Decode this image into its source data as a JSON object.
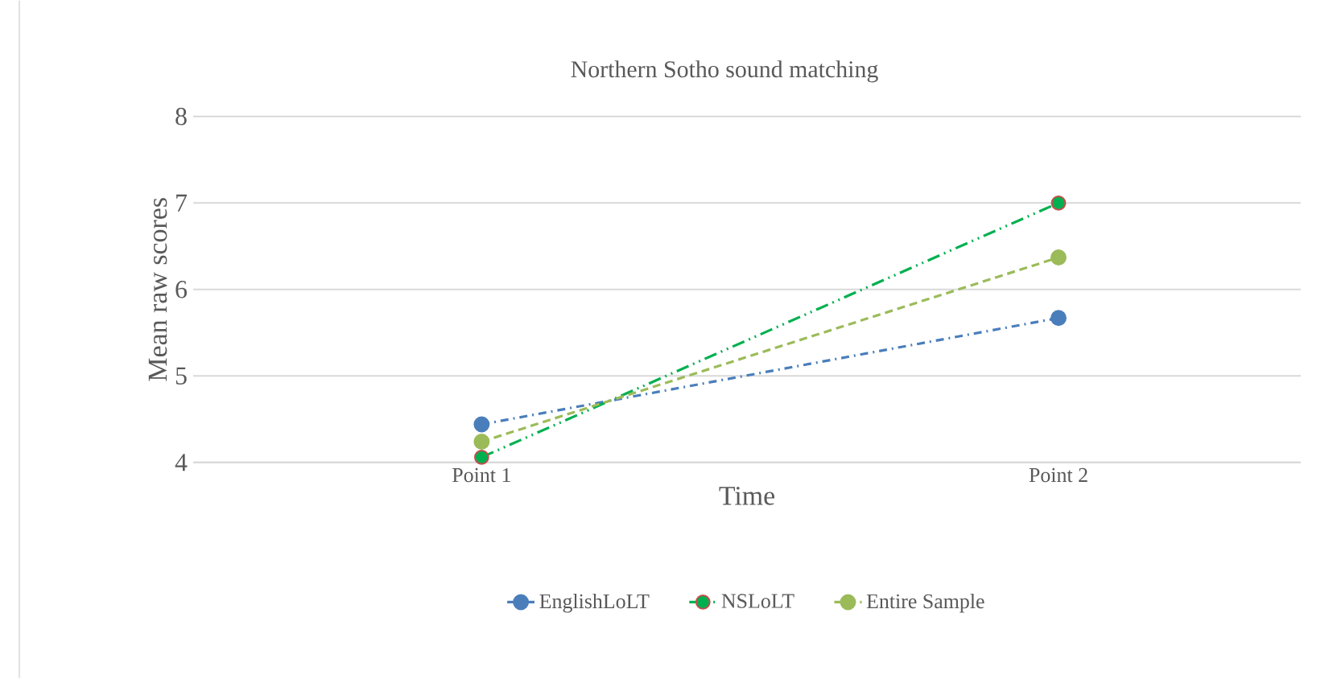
{
  "chart_data": {
    "type": "line",
    "title": "Northern Sotho sound matching",
    "xlabel": "Time",
    "ylabel": "Mean raw scores",
    "categories": [
      "Point 1",
      "Point 2"
    ],
    "series": [
      {
        "name": "EnglishLoLT",
        "color": "#4a7ebb",
        "values": [
          4.44,
          5.67
        ],
        "line_style": "dashdot"
      },
      {
        "name": "NSLoLT",
        "color": "#00b050",
        "values": [
          4.06,
          7.0
        ],
        "line_style": "dashdotdot"
      },
      {
        "name": "Entire Sample",
        "color": "#9bbb59",
        "values": [
          4.24,
          6.37
        ],
        "line_style": "dashed"
      }
    ],
    "ylim": [
      4,
      8
    ],
    "yticks": [
      4,
      5,
      6,
      7,
      8
    ],
    "grid": "y",
    "legend": "bottom",
    "marker": "circle"
  }
}
